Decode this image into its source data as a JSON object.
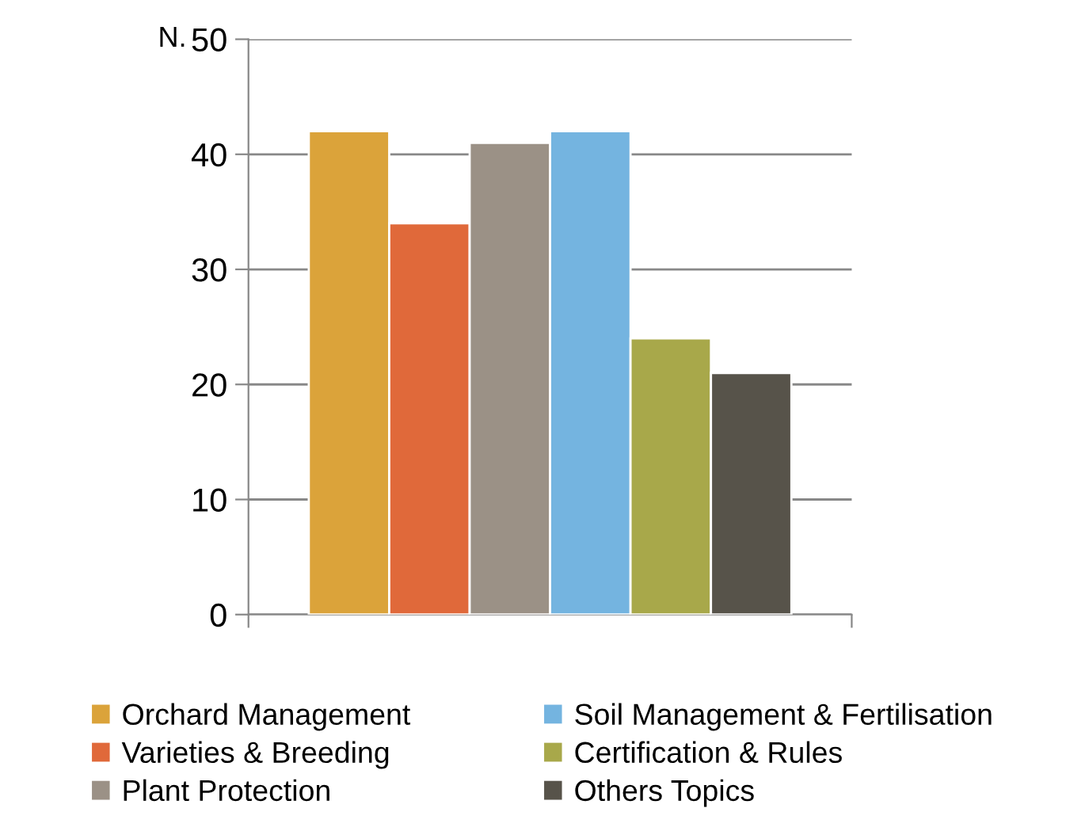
{
  "chart_data": {
    "type": "bar",
    "ylabel": "N.",
    "categories": [
      null
    ],
    "series": [
      {
        "name": "Orchard Management",
        "color": "#dba33a",
        "values": [
          42
        ]
      },
      {
        "name": "Varieties & Breeding",
        "color": "#e0693a",
        "values": [
          34
        ]
      },
      {
        "name": "Plant Protection",
        "color": "#9b9186",
        "values": [
          41
        ]
      },
      {
        "name": "Soil Management & Fertilisation",
        "color": "#74b4e0",
        "values": [
          42
        ]
      },
      {
        "name": "Certification & Rules",
        "color": "#a8a84a",
        "values": [
          24
        ]
      },
      {
        "name": "Others Topics",
        "color": "#57534a",
        "values": [
          21
        ]
      }
    ],
    "ylim": [
      0,
      50
    ],
    "yticks": [
      0,
      10,
      20,
      30,
      40,
      50
    ],
    "grid": "y",
    "legend": "bottom"
  }
}
